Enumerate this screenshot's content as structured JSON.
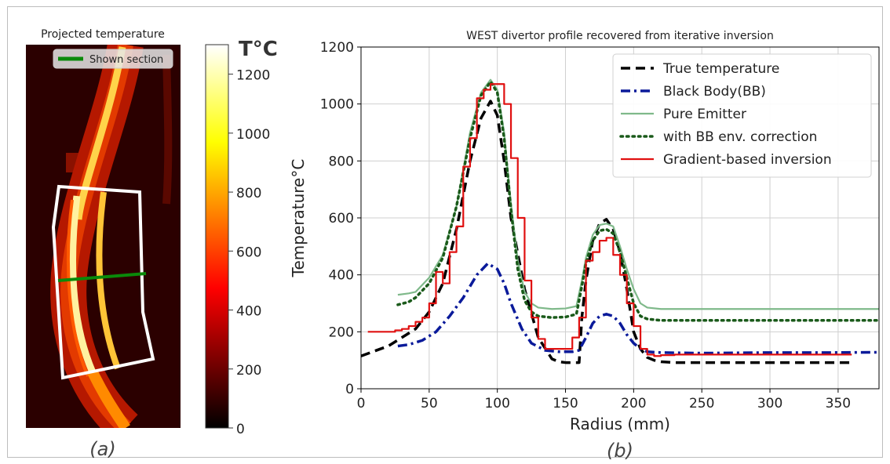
{
  "panel_a": {
    "title": "Projected temperature",
    "legend_label": "Shown section",
    "label": "(a)",
    "colorbar": {
      "unit": "T°C",
      "ticks": [
        0,
        200,
        400,
        600,
        800,
        1000,
        1200
      ],
      "range": [
        0,
        1300
      ],
      "colormap": "hot"
    }
  },
  "panel_b": {
    "label": "(b)"
  },
  "chart_data": {
    "type": "line",
    "title": "WEST divertor profile recovered from iterative inversion",
    "xlabel": "Radius (mm)",
    "ylabel": "Temperature°C",
    "xlim": [
      0,
      380
    ],
    "ylim": [
      0,
      1200
    ],
    "xticks": [
      0,
      50,
      100,
      150,
      200,
      250,
      300,
      350
    ],
    "yticks": [
      0,
      200,
      400,
      600,
      800,
      1000,
      1200
    ],
    "grid": true,
    "legend_position": "top-right",
    "series": [
      {
        "name": "True temperature",
        "color": "#000000",
        "style": "dashed",
        "x": [
          0,
          20,
          40,
          50,
          60,
          70,
          80,
          88,
          95,
          100,
          105,
          110,
          120,
          130,
          140,
          145,
          150,
          155,
          160,
          162,
          165,
          170,
          175,
          180,
          185,
          190,
          195,
          200,
          205,
          210,
          215,
          220,
          230,
          250,
          300,
          360
        ],
        "y": [
          115,
          150,
          210,
          270,
          370,
          560,
          800,
          950,
          1010,
          960,
          800,
          600,
          350,
          180,
          105,
          95,
          92,
          92,
          92,
          250,
          380,
          520,
          580,
          595,
          560,
          480,
          350,
          200,
          140,
          110,
          100,
          95,
          92,
          92,
          92,
          92
        ]
      },
      {
        "name": "Black Body(BB)",
        "color": "#0a1a9a",
        "style": "dashdot",
        "x": [
          27,
          35,
          45,
          55,
          65,
          75,
          85,
          93,
          100,
          105,
          110,
          118,
          125,
          135,
          145,
          155,
          160,
          165,
          170,
          175,
          180,
          185,
          190,
          195,
          200,
          205,
          210,
          220,
          250,
          300,
          340,
          380
        ],
        "y": [
          150,
          155,
          170,
          200,
          255,
          320,
          400,
          440,
          420,
          370,
          300,
          210,
          160,
          135,
          130,
          130,
          135,
          180,
          230,
          255,
          262,
          255,
          230,
          190,
          160,
          140,
          130,
          127,
          125,
          127,
          127,
          128
        ]
      },
      {
        "name": "Pure Emitter",
        "color": "#7fb98a",
        "style": "solid",
        "x": [
          27,
          35,
          40,
          50,
          60,
          70,
          80,
          88,
          95,
          100,
          105,
          110,
          115,
          120,
          125,
          130,
          140,
          150,
          158,
          162,
          165,
          170,
          175,
          180,
          185,
          190,
          195,
          200,
          205,
          210,
          220,
          250,
          300,
          380
        ],
        "y": [
          330,
          335,
          340,
          390,
          470,
          640,
          900,
          1040,
          1085,
          1050,
          900,
          650,
          450,
          340,
          300,
          285,
          280,
          282,
          290,
          380,
          460,
          540,
          575,
          580,
          570,
          500,
          420,
          350,
          300,
          285,
          280,
          280,
          280,
          280
        ]
      },
      {
        "name": "with BB env.  correction",
        "color": "#1a5a1a",
        "style": "dotted",
        "x": [
          27,
          35,
          40,
          50,
          60,
          70,
          80,
          88,
          95,
          100,
          105,
          110,
          115,
          120,
          125,
          130,
          140,
          150,
          158,
          162,
          165,
          170,
          175,
          180,
          185,
          190,
          195,
          200,
          205,
          210,
          220,
          250,
          300,
          380
        ],
        "y": [
          295,
          305,
          320,
          370,
          460,
          640,
          880,
          1030,
          1078,
          1040,
          880,
          630,
          420,
          310,
          270,
          255,
          250,
          252,
          262,
          360,
          440,
          520,
          555,
          560,
          545,
          480,
          390,
          300,
          255,
          245,
          240,
          240,
          240,
          240
        ]
      },
      {
        "name": "Gradient-based inversion",
        "color": "#e01010",
        "style": "steps",
        "x": [
          5,
          15,
          25,
          30,
          35,
          40,
          45,
          50,
          55,
          60,
          65,
          70,
          75,
          80,
          85,
          90,
          95,
          100,
          105,
          110,
          115,
          120,
          125,
          130,
          135,
          140,
          145,
          150,
          155,
          160,
          165,
          170,
          175,
          180,
          185,
          190,
          195,
          200,
          205,
          210,
          215,
          220,
          230,
          240,
          360
        ],
        "y": [
          200,
          200,
          205,
          210,
          220,
          235,
          250,
          300,
          410,
          370,
          480,
          570,
          780,
          880,
          1020,
          1050,
          1070,
          1070,
          1000,
          810,
          600,
          380,
          250,
          175,
          140,
          140,
          140,
          140,
          180,
          250,
          450,
          480,
          520,
          530,
          470,
          400,
          300,
          220,
          140,
          120,
          115,
          118,
          120,
          120,
          120
        ]
      }
    ]
  }
}
